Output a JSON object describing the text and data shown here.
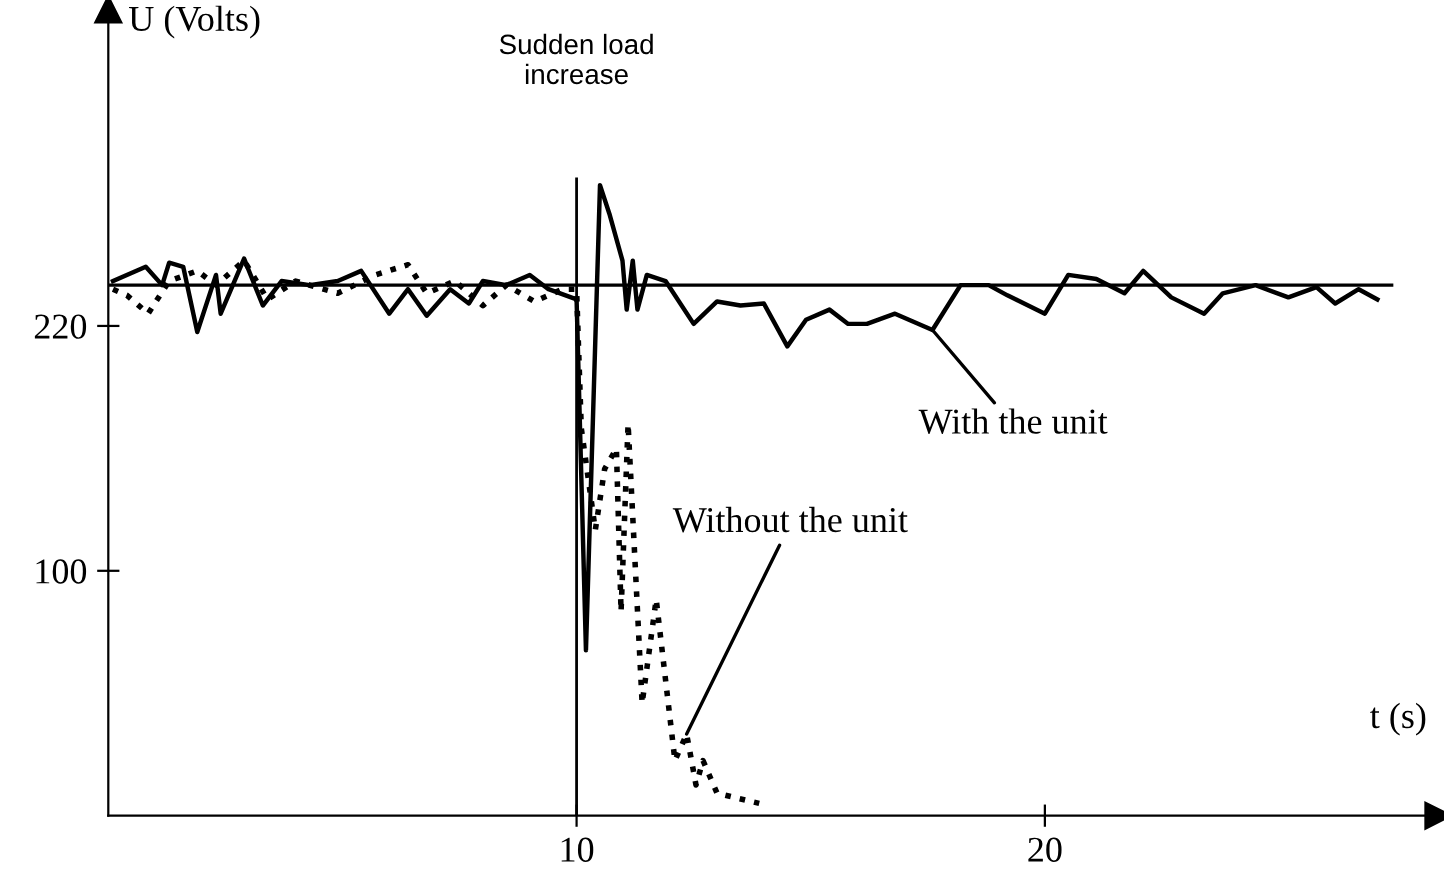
{
  "chart_data": {
    "type": "line",
    "xlabel": "t (s)",
    "ylabel": "U (Volts)",
    "xlim": [
      0,
      28.4
    ],
    "ylim": [
      -20,
      375
    ],
    "xticks": [
      10,
      20
    ],
    "yticks": [
      100,
      220
    ],
    "grid": false,
    "legend": false,
    "ref_lines": [
      {
        "axis": "y",
        "value": 240,
        "color": "#000000"
      },
      {
        "axis": "x",
        "value": 10,
        "label": "Sudden load\nincrease",
        "color": "#000000"
      }
    ],
    "series": [
      {
        "color": "#000000",
        "line_style": "solid",
        "x": [
          0.1,
          0.8,
          1.15,
          1.3,
          1.6,
          1.9,
          2.3,
          2.4,
          2.9,
          3.3,
          3.7,
          4.3,
          4.9,
          5.4,
          6.0,
          6.4,
          6.8,
          7.3,
          7.7,
          8.0,
          8.5,
          9.0,
          9.4,
          10.0,
          10.2,
          10.5,
          10.7,
          10.98,
          11.07,
          11.2,
          11.3,
          11.5,
          11.9,
          12.5,
          13.0,
          13.5,
          14.0,
          14.5,
          14.9,
          15.4,
          15.8,
          16.2,
          16.8,
          17.6,
          18.2,
          18.8,
          19.2,
          20.0,
          20.5,
          21.1,
          21.7,
          22.1,
          22.7,
          23.4,
          23.8,
          24.5,
          25.2,
          25.8,
          26.2,
          26.7,
          27.1
        ],
        "values": [
          242,
          249,
          240,
          251,
          249,
          217,
          245,
          226,
          253,
          230,
          242,
          240,
          242,
          247,
          226,
          238,
          225,
          238,
          231,
          242,
          240,
          245,
          238,
          233,
          61,
          289,
          275,
          252,
          228,
          252,
          228,
          245,
          242,
          221,
          232,
          230,
          231,
          210,
          223,
          228,
          221,
          221,
          226,
          218,
          240,
          240,
          235,
          226,
          245,
          243,
          236,
          247,
          234,
          226,
          236,
          240,
          234,
          239,
          231,
          238,
          233
        ]
      },
      {
        "color": "#000000",
        "line_style": "dotted",
        "x": [
          0.1,
          0.4,
          0.85,
          1.3,
          1.9,
          2.3,
          2.9,
          3.4,
          4.0,
          4.9,
          5.7,
          6.4,
          6.8,
          7.4,
          8.0,
          8.5,
          9.1,
          9.7,
          10.0,
          10.1,
          10.4,
          10.6,
          10.85,
          10.95,
          11.1,
          11.4,
          11.7,
          12.1,
          12.35,
          12.55,
          12.7,
          13.0,
          13.9
        ],
        "values": [
          238,
          235,
          226,
          242,
          247,
          240,
          252,
          233,
          242,
          236,
          245,
          250,
          236,
          242,
          230,
          240,
          232,
          238,
          238,
          170,
          120,
          150,
          160,
          80,
          172,
          35,
          86,
          7,
          20,
          -5,
          7,
          -9,
          -14
        ]
      }
    ],
    "annotations": [
      {
        "text": "With the unit",
        "x": 17.6,
        "y": 218
      },
      {
        "text": "Without the unit",
        "x": 12.35,
        "y": 20
      }
    ]
  }
}
